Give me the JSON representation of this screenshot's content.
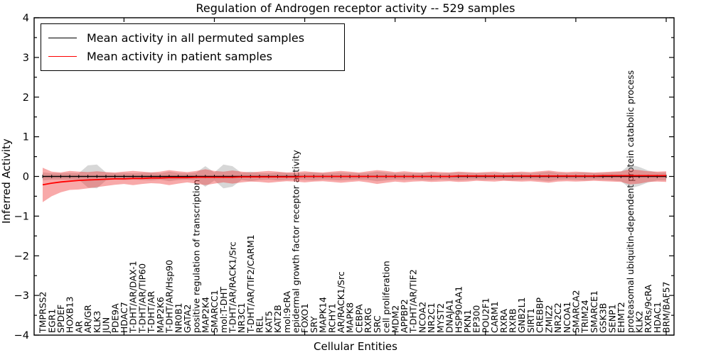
{
  "figure": {
    "background": "#ffffff"
  },
  "chart_data": {
    "type": "line",
    "title": "Regulation of Androgen receptor activity -- 529 samples",
    "xlabel": "Cellular Entities",
    "ylabel": "Inferred Activity",
    "ylim": [
      -4,
      4
    ],
    "ytick_step": 1,
    "yminor_step": 0.5,
    "xtick_mark_every": 10,
    "grid": false,
    "legend_position": "upper left",
    "categories": [
      "TMPRSS2",
      "EGR1",
      "SPDEF",
      "HOXB13",
      "AR",
      "AR/GR",
      "KLK3",
      "JUN",
      "PDE9A",
      "HDAC7",
      "T-DHT/AR/DAX-1",
      "T-DHT/AR/TIP60",
      "T-DHT/AR",
      "MAP2K6",
      "T-DHT/AR/Hsp90",
      "NR0B1",
      "GATA2",
      "positive regulation of transcription",
      "MAP2K4",
      "SMARCC1",
      "mol:T-DHT",
      "T-DHT/AR/RACK1/Src",
      "NR3C1",
      "T-DHT/AR/TIF2/CARM1",
      "REL",
      "KAT5",
      "KAT2B",
      "mol:9cRA",
      "epidermal growth factor receptor activity",
      "FOXO1",
      "SRY",
      "MAPK14",
      "RCHY1",
      "AR/RACK1/Src",
      "MAPK8",
      "CEBPA",
      "RXRG",
      "SRC",
      "cell proliferation",
      "MDM2",
      "APPBP2",
      "T-DHT/AR/TIF2",
      "NCOA2",
      "NR2C1",
      "MYST2",
      "DNAJA1",
      "HSP90AA1",
      "PKN1",
      "EP300",
      "POU2F1",
      "CARM1",
      "RXRA",
      "RXRB",
      "GNB2L1",
      "SIRT1",
      "CREBBP",
      "ZMIZ2",
      "NR2C2",
      "NCOA1",
      "SMARCA2",
      "TRIM24",
      "SMARCE1",
      "GSK3B",
      "SENP1",
      "EHMT2",
      "proteasomal ubiquitin-dependent protein catabolic process",
      "KLK2",
      "RXRs/9cRA",
      "HDAC1",
      "BRM/BAF57"
    ],
    "series": [
      {
        "name": "Mean activity in all permuted samples",
        "color": "#000000",
        "marker": "tick",
        "values": [
          0,
          0,
          0,
          0,
          0,
          0,
          0,
          0,
          0,
          0,
          0,
          0,
          0,
          0,
          0,
          0,
          0,
          0,
          0,
          0,
          0,
          0,
          0,
          0,
          0,
          0,
          0,
          0,
          0,
          0,
          0,
          0,
          0,
          0,
          0,
          0,
          0,
          0,
          0,
          0,
          0,
          0,
          0,
          0,
          0,
          0,
          0,
          0,
          0,
          0,
          0,
          0,
          0,
          0,
          0,
          0,
          0,
          0,
          0,
          0,
          0,
          0,
          0,
          0,
          0,
          0,
          0,
          0,
          0,
          0
        ]
      },
      {
        "name": "Mean activity in patient samples",
        "color": "#ff0000",
        "marker": "none",
        "values": [
          -0.21,
          -0.17,
          -0.14,
          -0.12,
          -0.1,
          -0.09,
          -0.08,
          -0.07,
          -0.06,
          -0.06,
          -0.05,
          -0.05,
          -0.04,
          -0.04,
          -0.03,
          -0.03,
          -0.03,
          -0.02,
          -0.02,
          -0.02,
          -0.02,
          -0.02,
          -0.01,
          -0.01,
          -0.01,
          -0.01,
          -0.01,
          -0.01,
          -0.01,
          0,
          0,
          0,
          0,
          0,
          0,
          0,
          0,
          0,
          0,
          0,
          0,
          0,
          0,
          0,
          0,
          0,
          0.01,
          0.01,
          0.01,
          0.01,
          0.01,
          0.01,
          0.01,
          0.01,
          0.01,
          0.01,
          0.01,
          0.01,
          0.01,
          0.01,
          0.01,
          0.01,
          0.02,
          0.02,
          0.02,
          0.02,
          0.02,
          0.02,
          0.02,
          0.02
        ]
      }
    ],
    "bands": [
      {
        "name": "permuted-range",
        "color": "#8c8c8c",
        "opacity": 0.35,
        "half_width": [
          0.1,
          0.08,
          0.08,
          0.09,
          0.08,
          0.28,
          0.3,
          0.1,
          0.08,
          0.09,
          0.08,
          0.09,
          0.1,
          0.08,
          0.12,
          0.09,
          0.08,
          0.1,
          0.26,
          0.1,
          0.3,
          0.26,
          0.09,
          0.12,
          0.09,
          0.08,
          0.1,
          0.09,
          0.08,
          0.09,
          0.1,
          0.08,
          0.09,
          0.1,
          0.09,
          0.08,
          0.09,
          0.12,
          0.1,
          0.08,
          0.09,
          0.08,
          0.09,
          0.1,
          0.08,
          0.09,
          0.1,
          0.09,
          0.08,
          0.09,
          0.08,
          0.09,
          0.1,
          0.09,
          0.08,
          0.1,
          0.12,
          0.09,
          0.08,
          0.09,
          0.1,
          0.08,
          0.09,
          0.1,
          0.12,
          0.3,
          0.24,
          0.15,
          0.1,
          0.1
        ]
      },
      {
        "name": "patient-range",
        "color": "#ee3333",
        "opacity": 0.42,
        "upper": [
          0.22,
          0.12,
          0.1,
          0.14,
          0.12,
          0.11,
          0.13,
          0.11,
          0.1,
          0.12,
          0.14,
          0.12,
          0.1,
          0.12,
          0.16,
          0.13,
          0.11,
          0.14,
          0.18,
          0.14,
          0.12,
          0.15,
          0.12,
          0.1,
          0.12,
          0.14,
          0.12,
          0.1,
          0.11,
          0.13,
          0.11,
          0.1,
          0.12,
          0.14,
          0.12,
          0.1,
          0.13,
          0.16,
          0.14,
          0.11,
          0.13,
          0.11,
          0.1,
          0.12,
          0.11,
          0.1,
          0.12,
          0.11,
          0.1,
          0.11,
          0.12,
          0.1,
          0.11,
          0.12,
          0.11,
          0.13,
          0.15,
          0.12,
          0.11,
          0.12,
          0.11,
          0.1,
          0.11,
          0.12,
          0.13,
          0.18,
          0.16,
          0.13,
          0.12,
          0.13
        ],
        "lower": [
          -0.65,
          -0.5,
          -0.4,
          -0.34,
          -0.33,
          -0.3,
          -0.27,
          -0.24,
          -0.21,
          -0.19,
          -0.22,
          -0.19,
          -0.17,
          -0.18,
          -0.22,
          -0.18,
          -0.15,
          -0.18,
          -0.22,
          -0.18,
          -0.15,
          -0.18,
          -0.15,
          -0.13,
          -0.14,
          -0.16,
          -0.14,
          -0.12,
          -0.13,
          -0.15,
          -0.13,
          -0.12,
          -0.14,
          -0.16,
          -0.14,
          -0.12,
          -0.15,
          -0.19,
          -0.16,
          -0.13,
          -0.15,
          -0.13,
          -0.12,
          -0.14,
          -0.13,
          -0.12,
          -0.14,
          -0.13,
          -0.11,
          -0.12,
          -0.13,
          -0.11,
          -0.12,
          -0.13,
          -0.12,
          -0.14,
          -0.16,
          -0.13,
          -0.12,
          -0.13,
          -0.12,
          -0.11,
          -0.12,
          -0.13,
          -0.14,
          -0.2,
          -0.18,
          -0.14,
          -0.13,
          -0.14
        ]
      }
    ]
  }
}
